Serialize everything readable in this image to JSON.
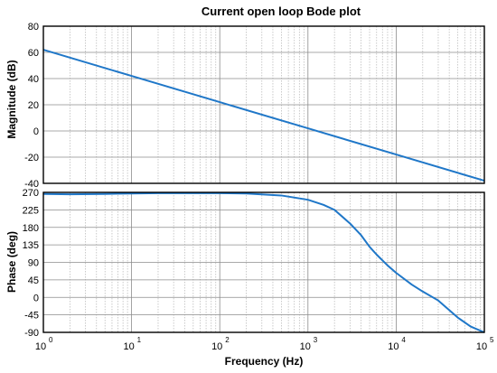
{
  "chart_data": [
    {
      "type": "line",
      "title": "Current open loop Bode plot",
      "xlabel": "",
      "ylabel": "Magnitude  (dB)",
      "xscale": "log",
      "xlim": [
        1,
        100000
      ],
      "ylim": [
        -40,
        80
      ],
      "yticks": [
        "80",
        "60",
        "40",
        "20",
        "0",
        "-20",
        "-40"
      ],
      "grid": true,
      "series": [
        {
          "color": "#1f77c8",
          "x": [
            1,
            10,
            100,
            1000,
            10000,
            100000
          ],
          "y": [
            62,
            42,
            22,
            2,
            -18,
            -38
          ]
        }
      ]
    },
    {
      "type": "line",
      "title": "",
      "xlabel": "Frequency  (Hz)",
      "ylabel": "Phase  (deg)",
      "xscale": "log",
      "xlim": [
        1,
        100000
      ],
      "ylim": [
        -90,
        270
      ],
      "yticks": [
        "270",
        "225",
        "180",
        "135",
        "90",
        "45",
        "0",
        "-45",
        "-90"
      ],
      "xticks": [
        {
          "base": "10",
          "exp": "0"
        },
        {
          "base": "10",
          "exp": "1"
        },
        {
          "base": "10",
          "exp": "2"
        },
        {
          "base": "10",
          "exp": "3"
        },
        {
          "base": "10",
          "exp": "4"
        },
        {
          "base": "10",
          "exp": "5"
        }
      ],
      "grid": true,
      "series": [
        {
          "color": "#1f77c8",
          "x": [
            1,
            2,
            5,
            10,
            20,
            50,
            100,
            200,
            500,
            1000,
            1500,
            2000,
            3000,
            4000,
            5000,
            6000,
            8000,
            10000,
            15000,
            20000,
            30000,
            50000,
            70000,
            100000
          ],
          "y": [
            266,
            265,
            266,
            267,
            268,
            268,
            268,
            267,
            262,
            251,
            238,
            225,
            190,
            160,
            130,
            110,
            82,
            63,
            33,
            15,
            -8,
            -52,
            -75,
            -90
          ]
        }
      ]
    }
  ]
}
